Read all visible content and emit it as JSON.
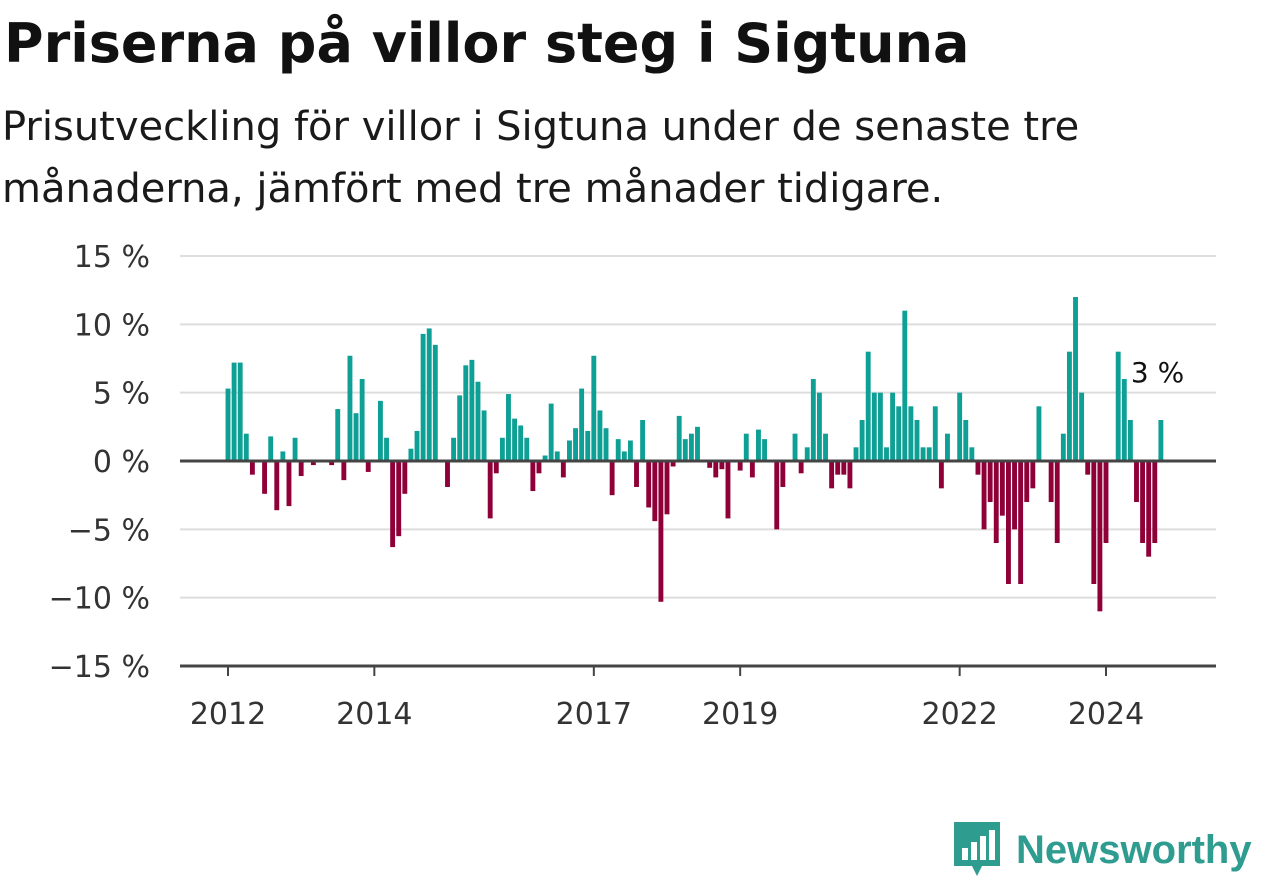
{
  "title": "Priserna på villor steg i Sigtuna",
  "subtitle": "Prisutveckling för villor i Sigtuna under de senaste tre månaderna, jämfört med tre månader tidigare.",
  "brand": "Newsworthy",
  "colors": {
    "positive": "#0e9f95",
    "negative": "#8e0037",
    "grid": "#dddddd",
    "axis": "#444444"
  },
  "chart_data": {
    "type": "bar",
    "title": "Priserna på villor steg i Sigtuna",
    "subtitle": "Prisutveckling för villor i Sigtuna under de senaste tre månaderna, jämfört med tre månader tidigare.",
    "xlabel": "",
    "ylabel": "",
    "unit": "%",
    "ylim": [
      -15,
      15
    ],
    "y_ticks": [
      15,
      10,
      5,
      0,
      -5,
      -10,
      -15
    ],
    "y_tick_labels": [
      "15 %",
      "10 %",
      "5 %",
      "0 %",
      "−5 %",
      "−10 %",
      "−15 %"
    ],
    "x_tick_labels": [
      "2012",
      "2014",
      "2017",
      "2019",
      "2022",
      "2024"
    ],
    "x_tick_dates": [
      "2012-01",
      "2014-01",
      "2017-01",
      "2019-01",
      "2022-01",
      "2024-01"
    ],
    "grid": true,
    "legend": "none",
    "start": "2012-01",
    "end": "2024-12",
    "annotation": {
      "date": "2024-10",
      "value": 3,
      "text": "3 %"
    },
    "series": [
      {
        "values": [
          {
            "date": "2012-01",
            "value": 5.3
          },
          {
            "date": "2012-02",
            "value": 7.2
          },
          {
            "date": "2012-03",
            "value": 7.2
          },
          {
            "date": "2012-04",
            "value": 2.0
          },
          {
            "date": "2012-05",
            "value": -1.0
          },
          {
            "date": "2012-06",
            "value": 0.1
          },
          {
            "date": "2012-07",
            "value": -2.4
          },
          {
            "date": "2012-08",
            "value": 1.8
          },
          {
            "date": "2012-09",
            "value": -3.6
          },
          {
            "date": "2012-10",
            "value": 0.7
          },
          {
            "date": "2012-11",
            "value": -3.3
          },
          {
            "date": "2012-12",
            "value": 1.7
          },
          {
            "date": "2013-01",
            "value": -1.1
          },
          {
            "date": "2013-02",
            "value": 0.0
          },
          {
            "date": "2013-03",
            "value": -0.3
          },
          {
            "date": "2013-04",
            "value": 0.0
          },
          {
            "date": "2013-05",
            "value": 0.0
          },
          {
            "date": "2013-06",
            "value": -0.3
          },
          {
            "date": "2013-07",
            "value": 3.8
          },
          {
            "date": "2013-08",
            "value": -1.4
          },
          {
            "date": "2013-09",
            "value": 7.7
          },
          {
            "date": "2013-10",
            "value": 3.5
          },
          {
            "date": "2013-11",
            "value": 6.0
          },
          {
            "date": "2013-12",
            "value": -0.8
          },
          {
            "date": "2014-01",
            "value": 0.0
          },
          {
            "date": "2014-02",
            "value": 4.4
          },
          {
            "date": "2014-03",
            "value": 1.7
          },
          {
            "date": "2014-04",
            "value": -6.3
          },
          {
            "date": "2014-05",
            "value": -5.5
          },
          {
            "date": "2014-06",
            "value": -2.4
          },
          {
            "date": "2014-07",
            "value": 0.9
          },
          {
            "date": "2014-08",
            "value": 2.2
          },
          {
            "date": "2014-09",
            "value": 9.3
          },
          {
            "date": "2014-10",
            "value": 9.7
          },
          {
            "date": "2014-11",
            "value": 8.5
          },
          {
            "date": "2014-12",
            "value": 0.0
          },
          {
            "date": "2015-01",
            "value": -1.9
          },
          {
            "date": "2015-02",
            "value": 1.7
          },
          {
            "date": "2015-03",
            "value": 4.8
          },
          {
            "date": "2015-04",
            "value": 7.0
          },
          {
            "date": "2015-05",
            "value": 7.4
          },
          {
            "date": "2015-06",
            "value": 5.8
          },
          {
            "date": "2015-07",
            "value": 3.7
          },
          {
            "date": "2015-08",
            "value": -4.2
          },
          {
            "date": "2015-09",
            "value": -0.9
          },
          {
            "date": "2015-10",
            "value": 1.7
          },
          {
            "date": "2015-11",
            "value": 4.9
          },
          {
            "date": "2015-12",
            "value": 3.1
          },
          {
            "date": "2016-01",
            "value": 2.6
          },
          {
            "date": "2016-02",
            "value": 1.7
          },
          {
            "date": "2016-03",
            "value": -2.2
          },
          {
            "date": "2016-04",
            "value": -0.9
          },
          {
            "date": "2016-05",
            "value": 0.4
          },
          {
            "date": "2016-06",
            "value": 4.2
          },
          {
            "date": "2016-07",
            "value": 0.7
          },
          {
            "date": "2016-08",
            "value": -1.2
          },
          {
            "date": "2016-09",
            "value": 1.5
          },
          {
            "date": "2016-10",
            "value": 2.4
          },
          {
            "date": "2016-11",
            "value": 5.3
          },
          {
            "date": "2016-12",
            "value": 2.2
          },
          {
            "date": "2017-01",
            "value": 7.7
          },
          {
            "date": "2017-02",
            "value": 3.7
          },
          {
            "date": "2017-03",
            "value": 2.4
          },
          {
            "date": "2017-04",
            "value": -2.5
          },
          {
            "date": "2017-05",
            "value": 1.6
          },
          {
            "date": "2017-06",
            "value": 0.7
          },
          {
            "date": "2017-07",
            "value": 1.5
          },
          {
            "date": "2017-08",
            "value": -1.9
          },
          {
            "date": "2017-09",
            "value": 3.0
          },
          {
            "date": "2017-10",
            "value": -3.4
          },
          {
            "date": "2017-11",
            "value": -4.4
          },
          {
            "date": "2017-12",
            "value": -10.3
          },
          {
            "date": "2018-01",
            "value": -3.9
          },
          {
            "date": "2018-02",
            "value": -0.4
          },
          {
            "date": "2018-03",
            "value": 3.3
          },
          {
            "date": "2018-04",
            "value": 1.6
          },
          {
            "date": "2018-05",
            "value": 2.0
          },
          {
            "date": "2018-06",
            "value": 2.5
          },
          {
            "date": "2018-07",
            "value": 0.0
          },
          {
            "date": "2018-08",
            "value": -0.5
          },
          {
            "date": "2018-09",
            "value": -1.2
          },
          {
            "date": "2018-10",
            "value": -0.6
          },
          {
            "date": "2018-11",
            "value": -4.2
          },
          {
            "date": "2018-12",
            "value": 0.0
          },
          {
            "date": "2019-01",
            "value": -0.7
          },
          {
            "date": "2019-02",
            "value": 2.0
          },
          {
            "date": "2019-03",
            "value": -1.2
          },
          {
            "date": "2019-04",
            "value": 2.3
          },
          {
            "date": "2019-05",
            "value": 1.6
          },
          {
            "date": "2019-06",
            "value": 0.1
          },
          {
            "date": "2019-07",
            "value": -5.0
          },
          {
            "date": "2019-08",
            "value": -1.9
          },
          {
            "date": "2019-09",
            "value": 0.0
          },
          {
            "date": "2019-10",
            "value": 2.0
          },
          {
            "date": "2019-11",
            "value": -0.9
          },
          {
            "date": "2019-12",
            "value": 1.0
          },
          {
            "date": "2020-01",
            "value": 6.0
          },
          {
            "date": "2020-02",
            "value": 5.0
          },
          {
            "date": "2020-03",
            "value": 2.0
          },
          {
            "date": "2020-04",
            "value": -2.0
          },
          {
            "date": "2020-05",
            "value": -1.0
          },
          {
            "date": "2020-06",
            "value": -1.0
          },
          {
            "date": "2020-07",
            "value": -2.0
          },
          {
            "date": "2020-08",
            "value": 1.0
          },
          {
            "date": "2020-09",
            "value": 3.0
          },
          {
            "date": "2020-10",
            "value": 8.0
          },
          {
            "date": "2020-11",
            "value": 5.0
          },
          {
            "date": "2020-12",
            "value": 5.0
          },
          {
            "date": "2021-01",
            "value": 1.0
          },
          {
            "date": "2021-02",
            "value": 5.0
          },
          {
            "date": "2021-03",
            "value": 4.0
          },
          {
            "date": "2021-04",
            "value": 11.0
          },
          {
            "date": "2021-05",
            "value": 4.0
          },
          {
            "date": "2021-06",
            "value": 3.0
          },
          {
            "date": "2021-07",
            "value": 1.0
          },
          {
            "date": "2021-08",
            "value": 1.0
          },
          {
            "date": "2021-09",
            "value": 4.0
          },
          {
            "date": "2021-10",
            "value": -2.0
          },
          {
            "date": "2021-11",
            "value": 2.0
          },
          {
            "date": "2021-12",
            "value": 0.0
          },
          {
            "date": "2022-01",
            "value": 5.0
          },
          {
            "date": "2022-02",
            "value": 3.0
          },
          {
            "date": "2022-03",
            "value": 1.0
          },
          {
            "date": "2022-04",
            "value": -1.0
          },
          {
            "date": "2022-05",
            "value": -5.0
          },
          {
            "date": "2022-06",
            "value": -3.0
          },
          {
            "date": "2022-07",
            "value": -6.0
          },
          {
            "date": "2022-08",
            "value": -4.0
          },
          {
            "date": "2022-09",
            "value": -9.0
          },
          {
            "date": "2022-10",
            "value": -5.0
          },
          {
            "date": "2022-11",
            "value": -9.0
          },
          {
            "date": "2022-12",
            "value": -3.0
          },
          {
            "date": "2023-01",
            "value": -2.0
          },
          {
            "date": "2023-02",
            "value": 4.0
          },
          {
            "date": "2023-03",
            "value": 0.0
          },
          {
            "date": "2023-04",
            "value": -3.0
          },
          {
            "date": "2023-05",
            "value": -6.0
          },
          {
            "date": "2023-06",
            "value": 2.0
          },
          {
            "date": "2023-07",
            "value": 8.0
          },
          {
            "date": "2023-08",
            "value": 12.0
          },
          {
            "date": "2023-09",
            "value": 5.0
          },
          {
            "date": "2023-10",
            "value": -1.0
          },
          {
            "date": "2023-11",
            "value": -9.0
          },
          {
            "date": "2023-12",
            "value": -11.0
          },
          {
            "date": "2024-01",
            "value": -6.0
          },
          {
            "date": "2024-02",
            "value": 0.0
          },
          {
            "date": "2024-03",
            "value": 8.0
          },
          {
            "date": "2024-04",
            "value": 6.0
          },
          {
            "date": "2024-05",
            "value": 3.0
          },
          {
            "date": "2024-06",
            "value": -3.0
          },
          {
            "date": "2024-07",
            "value": -6.0
          },
          {
            "date": "2024-08",
            "value": -7.0
          },
          {
            "date": "2024-09",
            "value": -6.0
          },
          {
            "date": "2024-10",
            "value": 3.0
          }
        ]
      }
    ]
  }
}
